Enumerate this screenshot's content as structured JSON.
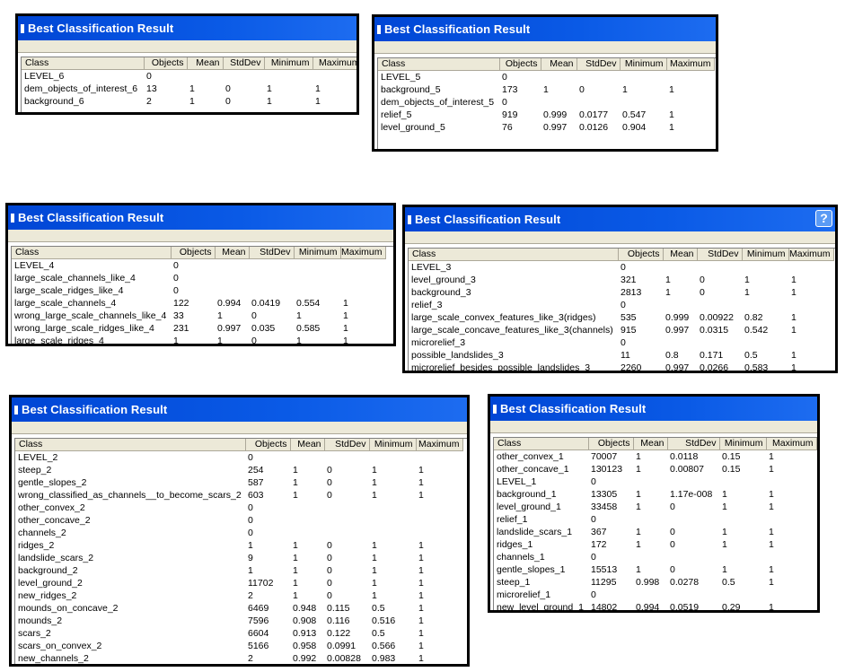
{
  "columns": [
    "Class",
    "Objects",
    "Mean",
    "StdDev",
    "Minimum",
    "Maximum"
  ],
  "windows": [
    {
      "title": "Best Classification Result",
      "has_help": false,
      "rows": [
        [
          "LEVEL_6",
          "0",
          "",
          "",
          "",
          ""
        ],
        [
          "dem_objects_of_interest_6",
          "13",
          "1",
          "0",
          "1",
          "1"
        ],
        [
          "background_6",
          "2",
          "1",
          "0",
          "1",
          "1"
        ]
      ]
    },
    {
      "title": "Best Classification Result",
      "has_help": false,
      "rows": [
        [
          "LEVEL_5",
          "0",
          "",
          "",
          "",
          ""
        ],
        [
          "background_5",
          "173",
          "1",
          "0",
          "1",
          "1"
        ],
        [
          "dem_objects_of_interest_5",
          "0",
          "",
          "",
          "",
          ""
        ],
        [
          "relief_5",
          "919",
          "0.999",
          "0.0177",
          "0.547",
          "1"
        ],
        [
          "level_ground_5",
          "76",
          "0.997",
          "0.0126",
          "0.904",
          "1"
        ]
      ]
    },
    {
      "title": "Best Classification Result",
      "has_help": false,
      "rows": [
        [
          "LEVEL_4",
          "0",
          "",
          "",
          "",
          ""
        ],
        [
          "large_scale_channels_like_4",
          "0",
          "",
          "",
          "",
          ""
        ],
        [
          "large_scale_ridges_like_4",
          "0",
          "",
          "",
          "",
          ""
        ],
        [
          "large_scale_channels_4",
          "122",
          "0.994",
          "0.0419",
          "0.554",
          "1"
        ],
        [
          "wrong_large_scale_channels_like_4",
          "33",
          "1",
          "0",
          "1",
          "1"
        ],
        [
          "wrong_large_scale_ridges_like_4",
          "231",
          "0.997",
          "0.035",
          "0.585",
          "1"
        ],
        [
          "large_scale_ridges_4",
          "1",
          "1",
          "0",
          "1",
          "1"
        ]
      ]
    },
    {
      "title": "Best Classification Result",
      "has_help": true,
      "help_glyph": "?",
      "rows": [
        [
          "LEVEL_3",
          "0",
          "",
          "",
          "",
          ""
        ],
        [
          "level_ground_3",
          "321",
          "1",
          "0",
          "1",
          "1"
        ],
        [
          "background_3",
          "2813",
          "1",
          "0",
          "1",
          "1"
        ],
        [
          "relief_3",
          "0",
          "",
          "",
          "",
          ""
        ],
        [
          "large_scale_convex_features_like_3(ridges)",
          "535",
          "0.999",
          "0.00922",
          "0.82",
          "1"
        ],
        [
          "large_scale_concave_features_like_3(channels)",
          "915",
          "0.997",
          "0.0315",
          "0.542",
          "1"
        ],
        [
          "microrelief_3",
          "0",
          "",
          "",
          "",
          ""
        ],
        [
          "possible_landslides_3",
          "11",
          "0.8",
          "0.171",
          "0.5",
          "1"
        ],
        [
          "microrelief_besides_possible_landslides_3",
          "2260",
          "0.997",
          "0.0266",
          "0.583",
          "1"
        ]
      ]
    },
    {
      "title": "Best Classification Result",
      "has_help": false,
      "rows": [
        [
          "LEVEL_2",
          "0",
          "",
          "",
          "",
          ""
        ],
        [
          "steep_2",
          "254",
          "1",
          "0",
          "1",
          "1"
        ],
        [
          "gentle_slopes_2",
          "587",
          "1",
          "0",
          "1",
          "1"
        ],
        [
          "wrong_classified_as_channels__to_become_scars_2",
          "603",
          "1",
          "0",
          "1",
          "1"
        ],
        [
          "other_convex_2",
          "0",
          "",
          "",
          "",
          ""
        ],
        [
          "other_concave_2",
          "0",
          "",
          "",
          "",
          ""
        ],
        [
          "channels_2",
          "0",
          "",
          "",
          "",
          ""
        ],
        [
          "ridges_2",
          "1",
          "1",
          "0",
          "1",
          "1"
        ],
        [
          "landslide_scars_2",
          "9",
          "1",
          "0",
          "1",
          "1"
        ],
        [
          "background_2",
          "1",
          "1",
          "0",
          "1",
          "1"
        ],
        [
          "level_ground_2",
          "11702",
          "1",
          "0",
          "1",
          "1"
        ],
        [
          "new_ridges_2",
          "2",
          "1",
          "0",
          "1",
          "1"
        ],
        [
          "mounds_on_concave_2",
          "6469",
          "0.948",
          "0.115",
          "0.5",
          "1"
        ],
        [
          "mounds_2",
          "7596",
          "0.908",
          "0.116",
          "0.516",
          "1"
        ],
        [
          "scars_2",
          "6604",
          "0.913",
          "0.122",
          "0.5",
          "1"
        ],
        [
          "scars_on_convex_2",
          "5166",
          "0.958",
          "0.0991",
          "0.566",
          "1"
        ],
        [
          "new_channels_2",
          "2",
          "0.992",
          "0.00828",
          "0.983",
          "1"
        ]
      ]
    },
    {
      "title": "Best Classification Result",
      "has_help": false,
      "rows": [
        [
          "other_convex_1",
          "70007",
          "1",
          "0.0118",
          "0.15",
          "1"
        ],
        [
          "other_concave_1",
          "130123",
          "1",
          "0.00807",
          "0.15",
          "1"
        ],
        [
          "LEVEL_1",
          "0",
          "",
          "",
          "",
          ""
        ],
        [
          "background_1",
          "13305",
          "1",
          "1.17e-008",
          "1",
          "1"
        ],
        [
          "level_ground_1",
          "33458",
          "1",
          "0",
          "1",
          "1"
        ],
        [
          "relief_1",
          "0",
          "",
          "",
          "",
          ""
        ],
        [
          "landslide_scars_1",
          "367",
          "1",
          "0",
          "1",
          "1"
        ],
        [
          "ridges_1",
          "172",
          "1",
          "0",
          "1",
          "1"
        ],
        [
          "channels_1",
          "0",
          "",
          "",
          "",
          ""
        ],
        [
          "gentle_slopes_1",
          "15513",
          "1",
          "0",
          "1",
          "1"
        ],
        [
          "steep_1",
          "11295",
          "0.998",
          "0.0278",
          "0.5",
          "1"
        ],
        [
          "microrelief_1",
          "0",
          "",
          "",
          "",
          ""
        ],
        [
          "new_level_ground_1",
          "14802",
          "0.994",
          "0.0519",
          "0.29",
          "1"
        ]
      ]
    }
  ]
}
